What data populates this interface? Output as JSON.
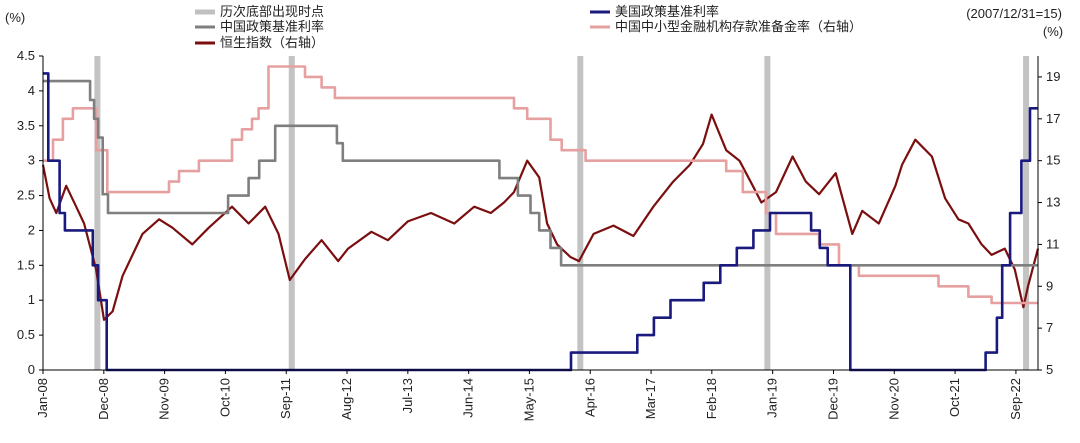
{
  "chart_data": {
    "type": "line",
    "title": "",
    "left_axis": {
      "unit_label": "(%)",
      "ylim": [
        0,
        4.5
      ],
      "ticks": [
        "0",
        "0.5",
        "1",
        "1.5",
        "2",
        "2.5",
        "3",
        "3.5",
        "4",
        "4.5"
      ]
    },
    "right_axis": {
      "unit_label": "(%)",
      "base_note": "(2007/12/31=15)",
      "ylim": [
        5,
        20
      ],
      "ticks": [
        "5",
        "7",
        "9",
        "11",
        "13",
        "15",
        "17",
        "19"
      ]
    },
    "x_tick_labels": [
      "Jan-08",
      "Dec-08",
      "Nov-09",
      "Oct-10",
      "Sep-11",
      "Aug-12",
      "Jul-13",
      "Jun-14",
      "May-15",
      "Apr-16",
      "Mar-17",
      "Feb-18",
      "Jan-19",
      "Dec-19",
      "Nov-20",
      "Oct-21",
      "Sep-22"
    ],
    "x_tick_positions": [
      2008.0,
      2008.917,
      2009.833,
      2010.75,
      2011.667,
      2012.583,
      2013.5,
      2014.417,
      2015.333,
      2016.25,
      2017.167,
      2018.083,
      2019.0,
      2019.917,
      2020.833,
      2021.75,
      2022.667
    ],
    "xlim": [
      2008.0,
      2023.0
    ],
    "legend": {
      "bottom_points": "历次底部出现时点",
      "china_rate": "中国政策基准利率",
      "hsi": "恒生指数（右轴）",
      "us_rate": "美国政策基准利率",
      "china_rrr": "中国中小型金融机构存款准备金率（右轴）"
    },
    "bottom_points": [
      2008.82,
      2011.75,
      2016.1,
      2018.92,
      2022.82
    ],
    "series": [
      {
        "name": "美国政策基准利率",
        "axis": "left",
        "color": "#1a1a7e",
        "step": true,
        "x": [
          2008.0,
          2008.08,
          2008.25,
          2008.33,
          2008.75,
          2008.83,
          2008.96,
          2015.96,
          2016.96,
          2017.21,
          2017.46,
          2017.96,
          2018.21,
          2018.46,
          2018.71,
          2018.96,
          2019.58,
          2019.71,
          2019.83,
          2020.17,
          2022.21,
          2022.38,
          2022.46,
          2022.58,
          2022.75,
          2022.88,
          2023.0
        ],
        "values": [
          4.25,
          3.0,
          2.25,
          2.0,
          1.5,
          1.0,
          0.0,
          0.25,
          0.5,
          0.75,
          1.0,
          1.25,
          1.5,
          1.75,
          2.0,
          2.25,
          2.0,
          1.75,
          1.5,
          0.0,
          0.25,
          0.75,
          1.5,
          2.25,
          3.0,
          3.75,
          3.75
        ]
      },
      {
        "name": "中国政策基准利率",
        "axis": "left",
        "color": "#7f7f7f",
        "step": true,
        "x": [
          2008.0,
          2008.71,
          2008.77,
          2008.83,
          2008.9,
          2008.98,
          2010.79,
          2011.1,
          2011.26,
          2011.5,
          2012.43,
          2012.52,
          2014.88,
          2015.16,
          2015.35,
          2015.48,
          2015.65,
          2015.81,
          2023.0
        ],
        "values": [
          4.14,
          3.87,
          3.6,
          3.33,
          2.52,
          2.25,
          2.5,
          2.75,
          3.0,
          3.5,
          3.25,
          3.0,
          2.75,
          2.5,
          2.25,
          2.0,
          1.75,
          1.5,
          1.5
        ]
      },
      {
        "name": "中国中小型金融机构存款准备金率（右轴）",
        "axis": "right",
        "color": "#e6a0a0",
        "step": true,
        "x": [
          2008.0,
          2008.15,
          2008.3,
          2008.45,
          2008.8,
          2008.97,
          2009.9,
          2010.05,
          2010.35,
          2010.85,
          2011.0,
          2011.15,
          2011.25,
          2011.4,
          2011.95,
          2012.2,
          2012.4,
          2015.1,
          2015.3,
          2015.65,
          2015.82,
          2016.18,
          2018.3,
          2018.55,
          2018.9,
          2019.05,
          2019.7,
          2020.0,
          2020.3,
          2021.5,
          2021.95,
          2022.3,
          2023.0
        ],
        "values": [
          15.0,
          16.0,
          17.0,
          17.5,
          15.5,
          13.5,
          14.0,
          14.5,
          15.0,
          16.0,
          16.5,
          17.0,
          17.5,
          19.5,
          19.0,
          18.5,
          18.0,
          17.5,
          17.0,
          16.0,
          15.5,
          15.0,
          14.5,
          13.5,
          12.5,
          11.5,
          11.0,
          10.0,
          9.5,
          9.0,
          8.5,
          8.2,
          8.2
        ]
      },
      {
        "name": "恒生指数（右轴）",
        "axis": "right",
        "color": "#7b0f0f",
        "step": false,
        "x": [
          2008.0,
          2008.1,
          2008.2,
          2008.35,
          2008.5,
          2008.62,
          2008.8,
          2008.92,
          2009.05,
          2009.2,
          2009.5,
          2009.75,
          2009.95,
          2010.25,
          2010.5,
          2010.85,
          2011.1,
          2011.35,
          2011.55,
          2011.72,
          2011.95,
          2012.2,
          2012.45,
          2012.6,
          2012.95,
          2013.2,
          2013.5,
          2013.85,
          2014.2,
          2014.5,
          2014.75,
          2014.95,
          2015.1,
          2015.3,
          2015.48,
          2015.6,
          2015.75,
          2015.95,
          2016.08,
          2016.3,
          2016.6,
          2016.9,
          2017.2,
          2017.5,
          2017.75,
          2017.95,
          2018.08,
          2018.3,
          2018.5,
          2018.7,
          2018.83,
          2019.05,
          2019.3,
          2019.5,
          2019.7,
          2019.95,
          2020.2,
          2020.35,
          2020.6,
          2020.85,
          2020.95,
          2021.15,
          2021.4,
          2021.6,
          2021.8,
          2021.95,
          2022.15,
          2022.3,
          2022.5,
          2022.65,
          2022.78,
          2022.85,
          2023.0
        ],
        "values": [
          14.8,
          13.2,
          12.5,
          13.8,
          12.8,
          12.0,
          9.8,
          7.4,
          7.8,
          9.5,
          11.5,
          12.2,
          11.8,
          11.0,
          11.8,
          12.8,
          12.0,
          12.8,
          11.5,
          9.3,
          10.3,
          11.2,
          10.2,
          10.8,
          11.6,
          11.2,
          12.1,
          12.5,
          12.0,
          12.8,
          12.5,
          13.0,
          13.5,
          15.0,
          14.2,
          12.0,
          11.0,
          10.4,
          10.2,
          11.5,
          11.9,
          11.4,
          12.8,
          14.0,
          14.8,
          15.8,
          17.2,
          15.5,
          15.0,
          13.8,
          13.0,
          13.5,
          15.2,
          14.0,
          13.4,
          14.4,
          11.5,
          12.6,
          12.0,
          13.8,
          14.8,
          16.0,
          15.2,
          13.2,
          12.2,
          12.0,
          11.0,
          10.5,
          10.8,
          9.8,
          8.0,
          9.0,
          10.8
        ]
      }
    ]
  }
}
